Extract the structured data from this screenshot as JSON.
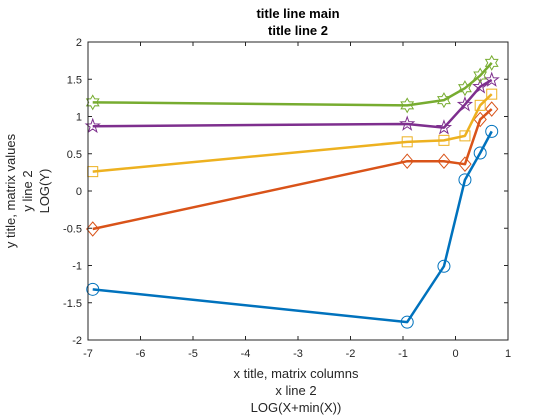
{
  "chart_data": {
    "type": "line",
    "title": [
      "title line main",
      "title line 2"
    ],
    "xlabel": [
      "x title, matrix columns",
      "x line 2",
      "LOG(X+min(X))"
    ],
    "ylabel": [
      "y title, matrix values",
      "y line 2",
      "LOG(Y)"
    ],
    "xlim": [
      -7,
      1
    ],
    "ylim": [
      -2,
      2
    ],
    "xticks": [
      -7,
      -6,
      -5,
      -4,
      -3,
      -2,
      -1,
      0,
      1
    ],
    "yticks": [
      2,
      1.5,
      1,
      0.5,
      0,
      -0.5,
      -1,
      -1.5,
      -2
    ],
    "grid": false,
    "legend": "none",
    "x": [
      -6.91,
      -0.92,
      -0.22,
      0.18,
      0.47,
      0.69
    ],
    "series": [
      {
        "color": "#0072BD",
        "marker": "circle",
        "values": [
          -1.32,
          -1.76,
          -1.01,
          0.15,
          0.51,
          0.8
        ]
      },
      {
        "color": "#D95319",
        "marker": "diamond",
        "values": [
          -0.51,
          0.4,
          0.4,
          0.36,
          0.96,
          1.1
        ]
      },
      {
        "color": "#EDB120",
        "marker": "square",
        "values": [
          0.26,
          0.66,
          0.68,
          0.74,
          1.15,
          1.3
        ]
      },
      {
        "color": "#7E2F8E",
        "marker": "pentagram",
        "values": [
          0.87,
          0.9,
          0.85,
          1.16,
          1.4,
          1.49
        ]
      },
      {
        "color": "#77AC30",
        "marker": "hexagram",
        "values": [
          1.19,
          1.15,
          1.22,
          1.38,
          1.55,
          1.72
        ]
      }
    ]
  }
}
